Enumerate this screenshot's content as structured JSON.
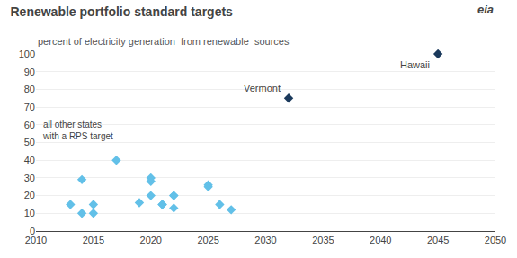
{
  "chart_data": {
    "type": "scatter",
    "title": "Renewable portfolio standard targets",
    "subtitle": "percent of electricity generation  from renewable  sources",
    "series": [
      {
        "x": [
          2013,
          2014,
          2014,
          2015,
          2015,
          2017,
          2019,
          2020,
          2020,
          2020,
          2021,
          2021,
          2022,
          2022,
          2022,
          2025,
          2025,
          2026,
          2027
        ],
        "values": [
          15,
          10,
          29,
          15,
          10,
          40,
          16,
          30,
          28,
          20,
          15,
          15,
          13,
          20,
          20,
          26,
          25,
          15,
          12
        ],
        "color": "#62C0E8",
        "marker": "diamond"
      },
      {
        "x": [
          2032
        ],
        "values": [
          75
        ],
        "color": "#1B3A5C",
        "marker": "diamond"
      },
      {
        "x": [
          2045
        ],
        "values": [
          100
        ],
        "color": "#1B3A5C",
        "marker": "diamond"
      }
    ],
    "annotations": [
      {
        "text": "Vermont",
        "x": 2032,
        "y": 75
      },
      {
        "text": "Hawaii",
        "x": 2045,
        "y": 100
      },
      {
        "text": "all other states\nwith a RPS target"
      },
      {
        "text": "eia"
      }
    ],
    "xlim": [
      2010,
      2050
    ],
    "ylim": [
      0,
      100
    ],
    "xticks": [
      2010,
      2015,
      2020,
      2025,
      2030,
      2035,
      2040,
      2045,
      2050
    ],
    "yticks": [
      0,
      10,
      20,
      30,
      40,
      50,
      60,
      70,
      80,
      90,
      100
    ],
    "grid": true
  }
}
